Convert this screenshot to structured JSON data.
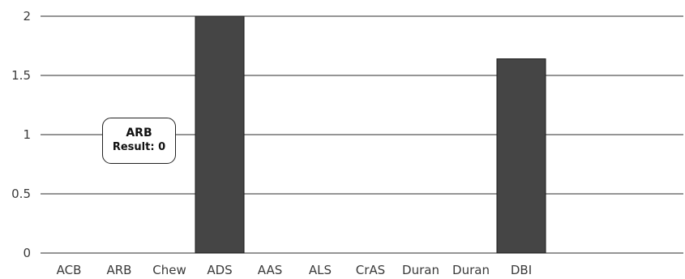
{
  "chart_data": {
    "type": "bar",
    "categories": [
      "ACB",
      "ARB",
      "Chew",
      "ADS",
      "AAS",
      "ALS",
      "CrAS",
      "Duran",
      "Duran",
      "DBI"
    ],
    "values": [
      0,
      0,
      0,
      2,
      0,
      0,
      0,
      0,
      0,
      1.64
    ],
    "ylim": [
      0,
      2
    ],
    "yticks": [
      {
        "value": 0,
        "label": "0"
      },
      {
        "value": 0.5,
        "label": "0.5"
      },
      {
        "value": 1,
        "label": "1"
      },
      {
        "value": 1.5,
        "label": "1.5"
      },
      {
        "value": 2,
        "label": "2"
      }
    ],
    "grid": true,
    "bar_color": "#454545",
    "tooltip": {
      "title": "ARB",
      "text": "Result: 0"
    }
  }
}
